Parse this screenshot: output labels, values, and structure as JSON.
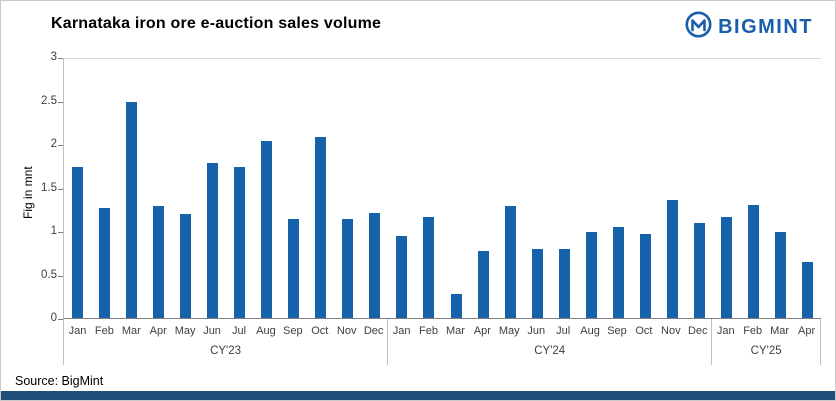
{
  "title": "Karnataka iron ore e-auction sales volume",
  "logo": {
    "text": "BIGMINT"
  },
  "source": "Source: BigMint",
  "colors": {
    "bar": "#1662ab",
    "logo": "#1a5dab",
    "footer_strip": "#1f4e79",
    "axis_text": "#404040"
  },
  "chart_data": {
    "type": "bar",
    "title": "Karnataka iron ore e-auction sales volume",
    "ylabel": "Fig in mnt",
    "xlabel": "",
    "ylim": [
      0,
      3
    ],
    "yticks": [
      0,
      0.5,
      1,
      1.5,
      2,
      2.5,
      3
    ],
    "grid": "top-line-only",
    "legend": "none",
    "groups": [
      {
        "label": "CY'23",
        "months": [
          "Jan",
          "Feb",
          "Mar",
          "Apr",
          "May",
          "Jun",
          "Jul",
          "Aug",
          "Sep",
          "Oct",
          "Nov",
          "Dec"
        ],
        "values": [
          1.75,
          1.28,
          2.5,
          1.3,
          1.2,
          1.8,
          1.75,
          2.05,
          1.15,
          2.1,
          1.15,
          1.22
        ]
      },
      {
        "label": "CY'24",
        "months": [
          "Jan",
          "Feb",
          "Mar",
          "Apr",
          "May",
          "Jun",
          "Jul",
          "Aug",
          "Sep",
          "Oct",
          "Nov",
          "Dec"
        ],
        "values": [
          0.95,
          1.17,
          0.28,
          0.78,
          1.3,
          0.8,
          0.8,
          1.0,
          1.05,
          0.97,
          1.37,
          1.1
        ]
      },
      {
        "label": "CY'25",
        "months": [
          "Jan",
          "Feb",
          "Mar",
          "Apr"
        ],
        "values": [
          1.17,
          1.31,
          1.0,
          0.65
        ]
      }
    ]
  }
}
